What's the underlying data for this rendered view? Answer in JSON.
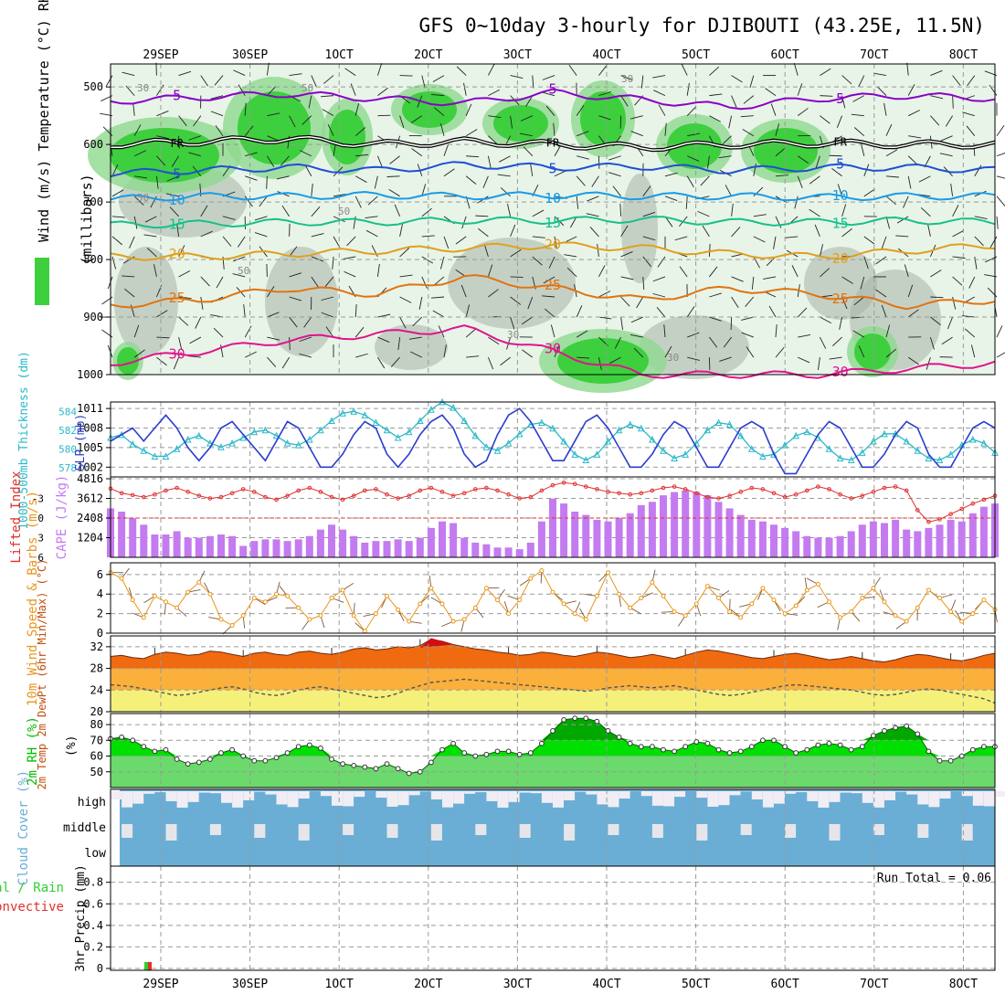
{
  "title": "GFS 0~10day 3-hourly for DJIBOUTI (43.25E, 11.5N)",
  "dates": [
    "29SEP",
    "30SEP",
    "1OCT",
    "2OCT",
    "3OCT",
    "4OCT",
    "5OCT",
    "6OCT",
    "7OCT",
    "8OCT"
  ],
  "run_total_label": "Run Total = 0.06",
  "colors": {
    "rh_fill": "#3ecf3e",
    "rh_light": "#e8f4e8",
    "rh_grey": "#a7b3a7",
    "lines": {
      "5n": "#8b00c8",
      "fr": "#000000",
      "5": "#1f4fd6",
      "10": "#1a9be6",
      "15": "#16c08a",
      "20": "#e0a020",
      "25": "#e07410",
      "30": "#e0148c"
    },
    "slp": "#2b3dcf",
    "thickness": "#2ab9c8",
    "li": "#e03030",
    "cape": "#c47bf0",
    "wind": "#e8961e",
    "temp": "#f06a10",
    "dew": "#555555",
    "rh_line": "#00c000",
    "cloud": "#6aaed6",
    "precip_total": "#2ecf2e",
    "precip_conv": "#e03030"
  },
  "chart_data": [
    {
      "type": "contour",
      "name": "upper-air",
      "ylabel": "Wind (m/s)  Temperature (°C)  RH (%)",
      "yunit_label": "(millibars)",
      "yticks": [
        500,
        600,
        700,
        800,
        900,
        1000
      ],
      "ylim": [
        460,
        1000
      ],
      "isotherms": [
        {
          "label": "-5",
          "c": "5n",
          "levels": [
            525,
            518,
            512,
            520,
            528,
            510,
            522,
            535,
            520,
            515,
            520
          ]
        },
        {
          "label": "FR",
          "c": "fr",
          "levels": [
            600,
            595,
            590,
            600,
            595,
            600,
            605,
            600,
            598,
            600,
            600
          ]
        },
        {
          "label": "-5",
          "c": "5",
          "levels": [
            650,
            645,
            640,
            645,
            635,
            640,
            638,
            645,
            640,
            640,
            645
          ]
        },
        {
          "label": "10",
          "c": "10",
          "levels": [
            695,
            690,
            690,
            688,
            690,
            688,
            690,
            690,
            692,
            690,
            690
          ]
        },
        {
          "label": "15",
          "c": "15",
          "levels": [
            740,
            738,
            735,
            735,
            732,
            732,
            730,
            735,
            735,
            732,
            735
          ]
        },
        {
          "label": "20",
          "c": "20",
          "levels": [
            795,
            795,
            790,
            785,
            780,
            775,
            780,
            790,
            795,
            785,
            775
          ]
        },
        {
          "label": "25",
          "c": "25",
          "levels": [
            880,
            870,
            850,
            860,
            830,
            850,
            870,
            850,
            860,
            880,
            870
          ]
        },
        {
          "label": "30",
          "c": "30",
          "levels": [
            980,
            960,
            940,
            930,
            920,
            960,
            1000,
            1000,
            1000,
            990,
            980
          ]
        }
      ],
      "rh_labels": [
        "30",
        "50",
        "50",
        "50",
        "30",
        "30",
        "30",
        "50"
      ]
    },
    {
      "type": "line",
      "name": "slp-thickness",
      "ylabel_left": "1000-500mb Thickness (dm)",
      "ylabel_right": "SLP (mb)",
      "yticks_left": [
        578,
        580,
        582,
        584
      ],
      "yticks_right": [
        1002,
        1005,
        1008,
        1011
      ],
      "series": [
        {
          "name": "SLP",
          "unit": "mb",
          "values": [
            1006,
            1007,
            1008,
            1006,
            1008,
            1010,
            1008,
            1005,
            1003,
            1005,
            1008,
            1009,
            1007,
            1005,
            1003,
            1006,
            1009,
            1008,
            1005,
            1002,
            1002,
            1004,
            1007,
            1009,
            1008,
            1004,
            1002,
            1004,
            1007,
            1009,
            1010,
            1008,
            1004,
            1002,
            1003,
            1007,
            1010,
            1011,
            1009,
            1006,
            1003,
            1003,
            1006,
            1009,
            1010,
            1008,
            1005,
            1002,
            1002,
            1004,
            1007,
            1009,
            1008,
            1005,
            1002,
            1002,
            1005,
            1008,
            1009,
            1008,
            1004,
            1001,
            1001,
            1004,
            1007,
            1009,
            1008,
            1005,
            1002,
            1002,
            1004,
            1007,
            1009,
            1008,
            1004,
            1002,
            1002,
            1005,
            1008,
            1009,
            1008
          ]
        },
        {
          "name": "Thickness",
          "unit": "dm",
          "values": [
            581.2,
            581.5,
            580.5,
            579.8,
            579.2,
            579.2,
            580.0,
            581.0,
            581.4,
            580.6,
            580.2,
            580.6,
            581.2,
            581.8,
            582.0,
            581.4,
            580.6,
            580.4,
            581.0,
            582.0,
            583.0,
            583.8,
            584.0,
            583.6,
            582.8,
            582.0,
            581.2,
            581.8,
            583.0,
            584.2,
            585.0,
            584.4,
            583.0,
            581.4,
            580.2,
            579.8,
            580.6,
            581.6,
            582.6,
            582.8,
            582.2,
            580.8,
            579.4,
            578.8,
            579.4,
            580.8,
            582.0,
            582.6,
            582.2,
            581.0,
            579.8,
            579.0,
            579.4,
            580.6,
            582.0,
            582.8,
            582.6,
            581.4,
            580.0,
            579.2,
            579.4,
            580.4,
            581.4,
            581.8,
            581.2,
            580.0,
            579.0,
            578.8,
            579.6,
            580.8,
            581.6,
            581.6,
            580.8,
            579.8,
            579.0,
            578.8,
            579.4,
            580.4,
            581.0,
            580.6,
            579.6
          ]
        }
      ]
    },
    {
      "type": "bar",
      "name": "lifted-index-cape",
      "ylabel_left": "Lifted Index",
      "ylabel_right": "CAPE (J/kg)",
      "yticks_left": [
        -3,
        0,
        3,
        6
      ],
      "yticks_right": [
        1204,
        2408,
        3612,
        4816
      ],
      "series": [
        {
          "name": "CAPE",
          "unit": "J/kg",
          "values": [
            3000,
            2800,
            2400,
            2000,
            1400,
            1400,
            1600,
            1200,
            1200,
            1300,
            1400,
            1300,
            700,
            1000,
            1100,
            1100,
            1000,
            1100,
            1300,
            1700,
            2000,
            1700,
            1300,
            900,
            1000,
            1000,
            1100,
            1000,
            1200,
            1800,
            2200,
            2100,
            1200,
            900,
            800,
            600,
            600,
            500,
            900,
            2200,
            3600,
            3300,
            2800,
            2600,
            2300,
            2200,
            2400,
            2700,
            3200,
            3400,
            3800,
            4000,
            4100,
            4000,
            3800,
            3400,
            3000,
            2600,
            2300,
            2200,
            2000,
            1800,
            1600,
            1300,
            1200,
            1200,
            1300,
            1600,
            2000,
            2200,
            2100,
            2300,
            1700,
            1600,
            1800,
            2000,
            2300,
            2200,
            2700,
            3100,
            3300
          ]
        },
        {
          "name": "Lifted Index",
          "unit": "",
          "values": [
            -4.5,
            -3.8,
            -3.5,
            -3.2,
            -3.6,
            -4.2,
            -4.6,
            -4.0,
            -3.4,
            -3.0,
            -3.2,
            -3.8,
            -4.4,
            -4.0,
            -3.2,
            -2.8,
            -3.4,
            -4.2,
            -4.6,
            -4.0,
            -3.2,
            -2.8,
            -3.4,
            -4.2,
            -4.4,
            -3.6,
            -3.0,
            -3.4,
            -4.2,
            -4.6,
            -4.0,
            -3.4,
            -3.8,
            -4.4,
            -4.6,
            -4.2,
            -3.6,
            -3.0,
            -3.2,
            -4.2,
            -5.0,
            -5.4,
            -5.2,
            -4.8,
            -4.4,
            -4.0,
            -3.8,
            -3.6,
            -3.8,
            -4.2,
            -4.6,
            -4.8,
            -4.4,
            -3.8,
            -3.2,
            -3.0,
            -3.4,
            -4.0,
            -4.6,
            -4.4,
            -3.8,
            -3.2,
            -3.6,
            -4.2,
            -4.8,
            -4.4,
            -3.6,
            -3.0,
            -3.4,
            -4.0,
            -4.6,
            -4.8,
            -4.2,
            -1.2,
            0.6,
            0.2,
            -0.6,
            -1.4,
            -2.2,
            -2.8,
            -3.4
          ]
        }
      ]
    },
    {
      "type": "line",
      "name": "wind-10m",
      "ylabel": "10m Wind Speed & Barbs (m/s)",
      "yticks": [
        0,
        2,
        4,
        6
      ],
      "series": [
        {
          "name": "Speed",
          "unit": "m/s",
          "values": [
            6.2,
            5.6,
            3.4,
            1.6,
            3.8,
            3.2,
            2.6,
            4.2,
            5.2,
            4.0,
            1.4,
            0.8,
            1.8,
            3.6,
            3.2,
            4.0,
            3.8,
            2.6,
            1.4,
            1.8,
            3.6,
            4.4,
            1.8,
            0.2,
            2.0,
            3.8,
            2.4,
            1.2,
            3.0,
            4.6,
            3.0,
            1.2,
            1.4,
            2.6,
            4.6,
            3.4,
            2.0,
            3.4,
            5.6,
            6.4,
            4.2,
            3.0,
            2.0,
            1.4,
            3.8,
            6.2,
            4.0,
            2.6,
            3.6,
            5.2,
            3.8,
            2.2,
            1.8,
            3.0,
            4.8,
            3.6,
            2.2,
            1.6,
            3.0,
            4.6,
            3.4,
            2.0,
            2.8,
            4.4,
            5.0,
            3.2,
            1.6,
            2.2,
            3.6,
            4.6,
            3.2,
            1.8,
            1.2,
            2.6,
            4.4,
            3.6,
            2.2,
            1.2,
            2.0,
            3.4,
            2.4
          ]
        }
      ]
    },
    {
      "type": "area",
      "name": "temp-dewpoint",
      "ylabel": "2m Temp  2m DewPt (6hr Min/Max) (°C)",
      "yticks": [
        20,
        24,
        28,
        32
      ],
      "series": [
        {
          "name": "2m Temp",
          "unit": "°C",
          "values": [
            30.2,
            30.4,
            30.0,
            29.8,
            30.6,
            31.0,
            30.8,
            30.4,
            30.6,
            31.2,
            31.0,
            30.6,
            30.2,
            30.8,
            31.0,
            30.6,
            30.4,
            31.0,
            31.2,
            30.8,
            30.6,
            31.0,
            31.6,
            31.8,
            31.4,
            31.6,
            32.0,
            31.8,
            32.2,
            33.4,
            33.0,
            32.4,
            32.0,
            31.6,
            31.4,
            31.0,
            30.8,
            30.4,
            30.6,
            31.0,
            30.8,
            30.4,
            30.2,
            30.6,
            31.0,
            30.8,
            30.4,
            30.0,
            30.2,
            30.6,
            30.2,
            29.8,
            30.4,
            31.0,
            31.4,
            31.2,
            30.8,
            30.4,
            30.0,
            29.8,
            30.2,
            30.6,
            30.8,
            30.4,
            30.0,
            29.6,
            29.8,
            30.2,
            29.8,
            29.4,
            29.2,
            29.6,
            30.2,
            30.6,
            30.4,
            30.0,
            29.6,
            29.4,
            29.8,
            30.4,
            30.8
          ]
        },
        {
          "name": "2m DewPt",
          "unit": "°C",
          "values": [
            25.0,
            24.8,
            24.6,
            24.2,
            23.8,
            23.4,
            23.0,
            23.2,
            23.6,
            24.0,
            24.4,
            24.6,
            24.2,
            23.6,
            23.2,
            23.0,
            23.4,
            24.0,
            24.4,
            24.6,
            24.2,
            23.8,
            23.4,
            23.0,
            22.6,
            22.8,
            23.4,
            24.2,
            24.8,
            25.4,
            25.6,
            25.8,
            26.0,
            25.8,
            25.6,
            25.4,
            25.2,
            25.0,
            24.8,
            24.6,
            24.4,
            24.2,
            24.0,
            23.8,
            24.0,
            24.4,
            24.6,
            24.8,
            24.6,
            24.4,
            24.6,
            24.8,
            24.4,
            24.0,
            23.6,
            23.2,
            23.0,
            23.2,
            23.6,
            24.0,
            24.4,
            24.8,
            25.0,
            24.8,
            24.6,
            24.4,
            24.2,
            24.0,
            23.6,
            23.2,
            23.0,
            23.2,
            23.6,
            24.0,
            24.2,
            24.0,
            23.6,
            23.2,
            22.8,
            22.4,
            21.6
          ]
        }
      ]
    },
    {
      "type": "area",
      "name": "rh-2m",
      "ylabel": "2m RH (%)",
      "yticks": [
        50,
        60,
        70,
        80
      ],
      "series": [
        {
          "name": "2m RH",
          "unit": "%",
          "values": [
            71,
            72,
            70,
            66,
            63,
            64,
            58,
            55,
            56,
            58,
            62,
            64,
            60,
            57,
            57,
            59,
            62,
            66,
            67,
            65,
            58,
            55,
            54,
            53,
            52,
            55,
            52,
            49,
            50,
            56,
            64,
            68,
            62,
            60,
            61,
            63,
            63,
            61,
            62,
            68,
            76,
            83,
            84,
            84,
            82,
            76,
            72,
            68,
            66,
            66,
            64,
            63,
            66,
            69,
            68,
            64,
            62,
            63,
            66,
            70,
            70,
            66,
            62,
            64,
            67,
            68,
            67,
            64,
            66,
            73,
            76,
            78,
            79,
            74,
            63,
            57,
            57,
            60,
            64,
            66,
            66
          ]
        }
      ]
    },
    {
      "type": "area",
      "name": "cloud-cover",
      "ylabel": "Cloud Cover (%)",
      "yticks": [
        "high",
        "middle",
        "low"
      ]
    },
    {
      "type": "bar",
      "name": "precip",
      "ylabel": "3hr Precip (mm)",
      "legend": [
        "Total / Rain",
        "Convective"
      ],
      "yticks": [
        0,
        0.2,
        0.4,
        0.6,
        0.8
      ],
      "series": [
        {
          "name": "Total",
          "unit": "mm",
          "values": [
            0,
            0,
            0,
            0.06,
            0,
            0,
            0,
            0,
            0,
            0
          ]
        }
      ]
    }
  ]
}
